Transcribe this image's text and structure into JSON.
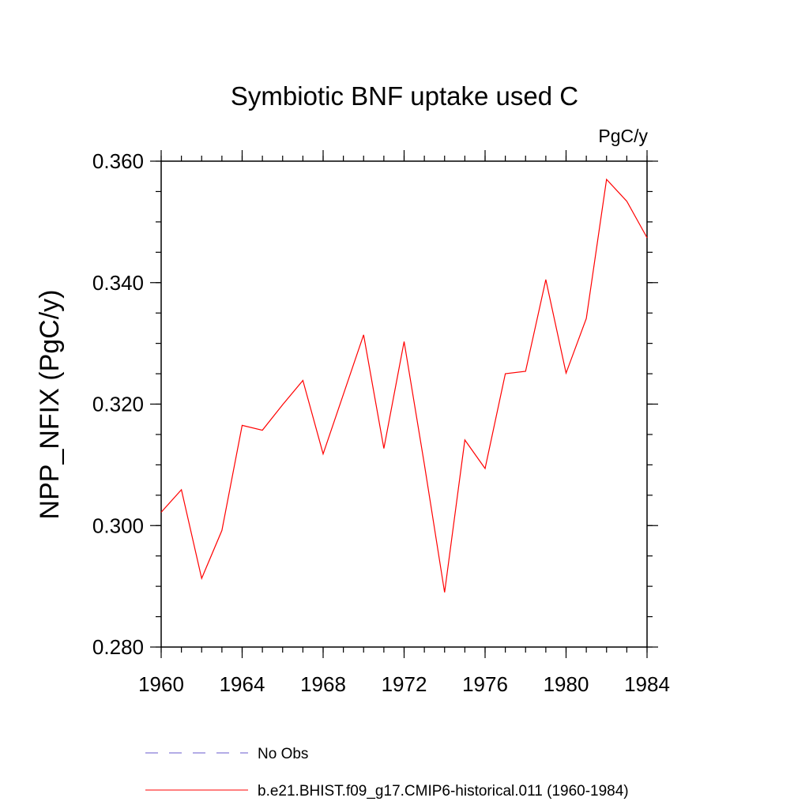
{
  "chart_data": {
    "type": "line",
    "title": "Symbiotic BNF uptake used C",
    "units": "PgC/y",
    "ylabel": "NPP_NFIX  (PgC/y)",
    "xlabel": "",
    "xlim": [
      1960,
      1984
    ],
    "ylim": [
      0.28,
      0.36
    ],
    "x_ticks": [
      "1960",
      "1964",
      "1968",
      "1972",
      "1976",
      "1980",
      "1984"
    ],
    "y_ticks": [
      "0.280",
      "0.300",
      "0.320",
      "0.340",
      "0.360"
    ],
    "grid": false,
    "legend_position": "bottom",
    "x": [
      1960,
      1961,
      1962,
      1963,
      1964,
      1965,
      1966,
      1967,
      1968,
      1969,
      1970,
      1971,
      1972,
      1973,
      1974,
      1975,
      1976,
      1977,
      1978,
      1979,
      1980,
      1981,
      1982,
      1983,
      1984
    ],
    "series": [
      {
        "name": "b.e21.BHIST.f09_g17.CMIP6-historical.011 (1960-1984)",
        "color": "#ff0000",
        "style": "solid",
        "values": [
          0.3022,
          0.3059,
          0.2913,
          0.2992,
          0.3165,
          0.3157,
          0.3199,
          0.3239,
          0.3118,
          0.3216,
          0.3314,
          0.3127,
          0.3303,
          0.3101,
          0.289,
          0.3141,
          0.3094,
          0.325,
          0.3254,
          0.3405,
          0.3251,
          0.3341,
          0.357,
          0.3534,
          0.3474
        ]
      }
    ],
    "legend": [
      {
        "label": "No Obs",
        "color": "#6a5acd",
        "style": "dashed"
      },
      {
        "label": "b.e21.BHIST.f09_g17.CMIP6-historical.011 (1960-1984)",
        "color": "#ff0000",
        "style": "solid"
      }
    ]
  }
}
